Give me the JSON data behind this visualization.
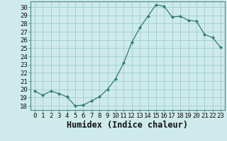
{
  "x": [
    0,
    1,
    2,
    3,
    4,
    5,
    6,
    7,
    8,
    9,
    10,
    11,
    12,
    13,
    14,
    15,
    16,
    17,
    18,
    19,
    20,
    21,
    22,
    23
  ],
  "y": [
    19.8,
    19.3,
    19.8,
    19.5,
    19.1,
    18.0,
    18.1,
    18.6,
    19.1,
    20.0,
    21.3,
    23.2,
    25.7,
    27.5,
    28.9,
    30.3,
    30.1,
    28.8,
    28.9,
    28.4,
    28.3,
    26.7,
    26.3,
    25.1
  ],
  "line_color": "#2e7d6e",
  "marker": "D",
  "marker_size": 2.2,
  "bg_color": "#ceeaea",
  "grid_color": "#9ecece",
  "xlabel": "Humidex (Indice chaleur)",
  "xlim": [
    -0.5,
    23.5
  ],
  "ylim": [
    17.5,
    30.7
  ],
  "yticks": [
    18,
    19,
    20,
    21,
    22,
    23,
    24,
    25,
    26,
    27,
    28,
    29,
    30
  ],
  "xticks": [
    0,
    1,
    2,
    3,
    4,
    5,
    6,
    7,
    8,
    9,
    10,
    11,
    12,
    13,
    14,
    15,
    16,
    17,
    18,
    19,
    20,
    21,
    22,
    23
  ],
  "tick_label_fontsize": 6.5,
  "xlabel_fontsize": 8.5
}
